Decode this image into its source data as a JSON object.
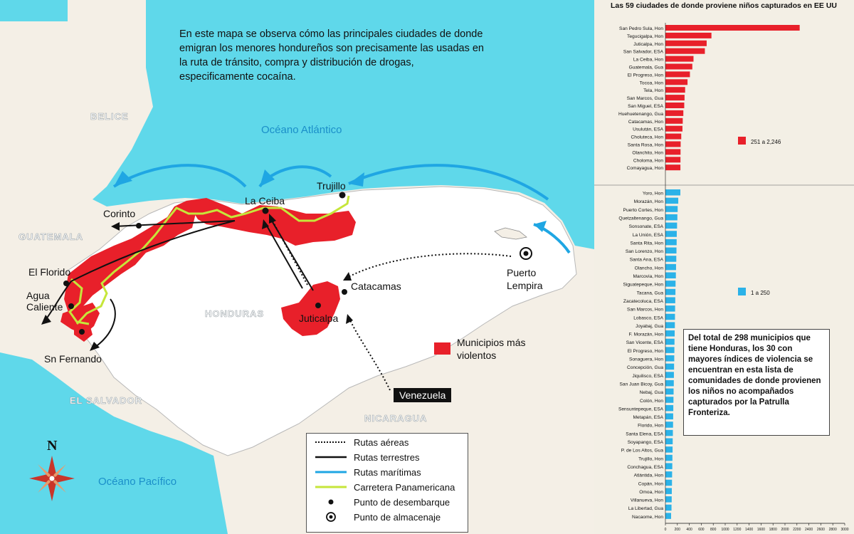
{
  "intro_text": "En este mapa se observa cómo las principales ciudades de donde emigran los menores hondureños son precisamente las usadas en la ruta de tránsito, compra y distribución de drogas, especificamente cocaína.",
  "map_labels": {
    "belice": "BELICE",
    "guatemala": "GUATEMALA",
    "honduras": "HONDURAS",
    "el_salvador": "EL SALVADOR",
    "nicaragua": "NICARAGUA",
    "oceano_atlantico": "Océano Atlántico",
    "oceano_pacifico": "Océano Pacífico",
    "compass_n": "N"
  },
  "places": {
    "corinto": "Corinto",
    "la_ceiba": "La Ceiba",
    "trujillo": "Trujillo",
    "el_florido": "El Florido",
    "agua": "Agua",
    "caliente": "Caliente",
    "sn_fernando": "Sn Fernando",
    "catacamas": "Catacamas",
    "juticalpa": "Juticalpa",
    "puerto": "Puerto",
    "lempira": "Lempira",
    "venezuela": "Venezuela"
  },
  "violent_key": "Municipios más violentos",
  "legend": {
    "aereas": "Rutas aéreas",
    "terrestres": "Rutas terrestres",
    "maritimas": "Rutas marítimas",
    "panamericana": "Carretera Panamericana",
    "desembarque": "Punto de desembarque",
    "almacenaje": "Punto de almacenaje"
  },
  "colors": {
    "ocean": "#5fd8ea",
    "land": "#f4efe6",
    "honduras": "#ffffff",
    "violent_red": "#e8202a",
    "highway_green": "#c6e63a",
    "maritime_blue": "#1fa6e3",
    "bar_blue": "#2bb2e8"
  },
  "note_text": "Del total de 298 municipios que tiene Honduras, los 30 con mayores índices de violencia se encuentran en esta lista de comunidades de donde provienen los niños no acompañados capturados por la Patrulla Fronteriza.",
  "chart_data": {
    "type": "bar",
    "orientation": "horizontal",
    "title": "Las 59 ciudades de donde proviene niños capturados en EE UU",
    "xlim": [
      0,
      3000
    ],
    "xticks": [
      0,
      200,
      400,
      600,
      800,
      1000,
      1200,
      1400,
      1600,
      1800,
      2000,
      2200,
      2400,
      2600,
      2800,
      3000
    ],
    "groups": [
      {
        "legend": "251 a 2,246",
        "color": "#e8202a",
        "categories": [
          "San Pedro Sula, Hon",
          "Tegucigalpa, Hon",
          "Juticalpa, Hon",
          "San Salvador, ESA",
          "La Ceiba, Hon",
          "Guatemala, Gua",
          "El Progreso, Hon",
          "Tocoa, Hon",
          "Tela, Hon",
          "San Marcos, Gua",
          "San Miguel, ESA",
          "Huehuetenango, Gua",
          "Catacamas, Hon",
          "Usulután, ESA",
          "Choluteca, Hon",
          "Santa Rosa, Hon",
          "Olanchito, Hon",
          "Choloma, Hon",
          "Comayagua, Hon"
        ],
        "values": [
          2246,
          770,
          690,
          660,
          470,
          450,
          410,
          370,
          330,
          320,
          315,
          300,
          290,
          285,
          265,
          255,
          253,
          252,
          251
        ]
      },
      {
        "legend": "1 a 250",
        "color": "#2bb2e8",
        "categories": [
          "Yoro, Hon",
          "Morazán, Hon",
          "Puerto Cortes, Hon",
          "Quetzaltenango, Gua",
          "Sonsonate, ESA",
          "La Unión, ESA",
          "Santa Rita, Hon",
          "San Lorenzo, Hon",
          "Santa Ana, ESA",
          "Olancho, Hon",
          "Marcovia, Hon",
          "Siguatepeque, Hon",
          "Tacana, Gua",
          "Zacatecoluca, ESA",
          "San Marcos, Hon",
          "Lobasco, ESA",
          "Joyabaj, Gua",
          "F. Morazán, Hon",
          "San Vicente, ESA",
          "El Progreso, Hon",
          "Sonaguera, Hon",
          "Concepción, Gua",
          "Jiquilisco, ESA",
          "San Juan Bicoy, Gua",
          "Nebaj, Gua",
          "Colón, Hon",
          "Sensuntepeque, ESA",
          "Metapán, ESA",
          "Florido, Hon",
          "Santa Elena, ESA",
          "Soyapango, ESA",
          "P. de Los Altos, Gua",
          "Trujillo, Hon",
          "Conchagua, ESA",
          "Atlántida, Hon",
          "Copán, Hon",
          "Omoa, Hon",
          "Villanueva, Hon",
          "La Libertad, Gua",
          "Nacaome, Hon"
        ],
        "values": [
          250,
          215,
          205,
          200,
          195,
          190,
          188,
          185,
          182,
          178,
          175,
          170,
          168,
          165,
          162,
          160,
          158,
          155,
          152,
          150,
          148,
          145,
          142,
          140,
          137,
          135,
          132,
          130,
          128,
          125,
          122,
          120,
          117,
          115,
          112,
          110,
          107,
          105,
          102,
          95
        ]
      }
    ]
  }
}
